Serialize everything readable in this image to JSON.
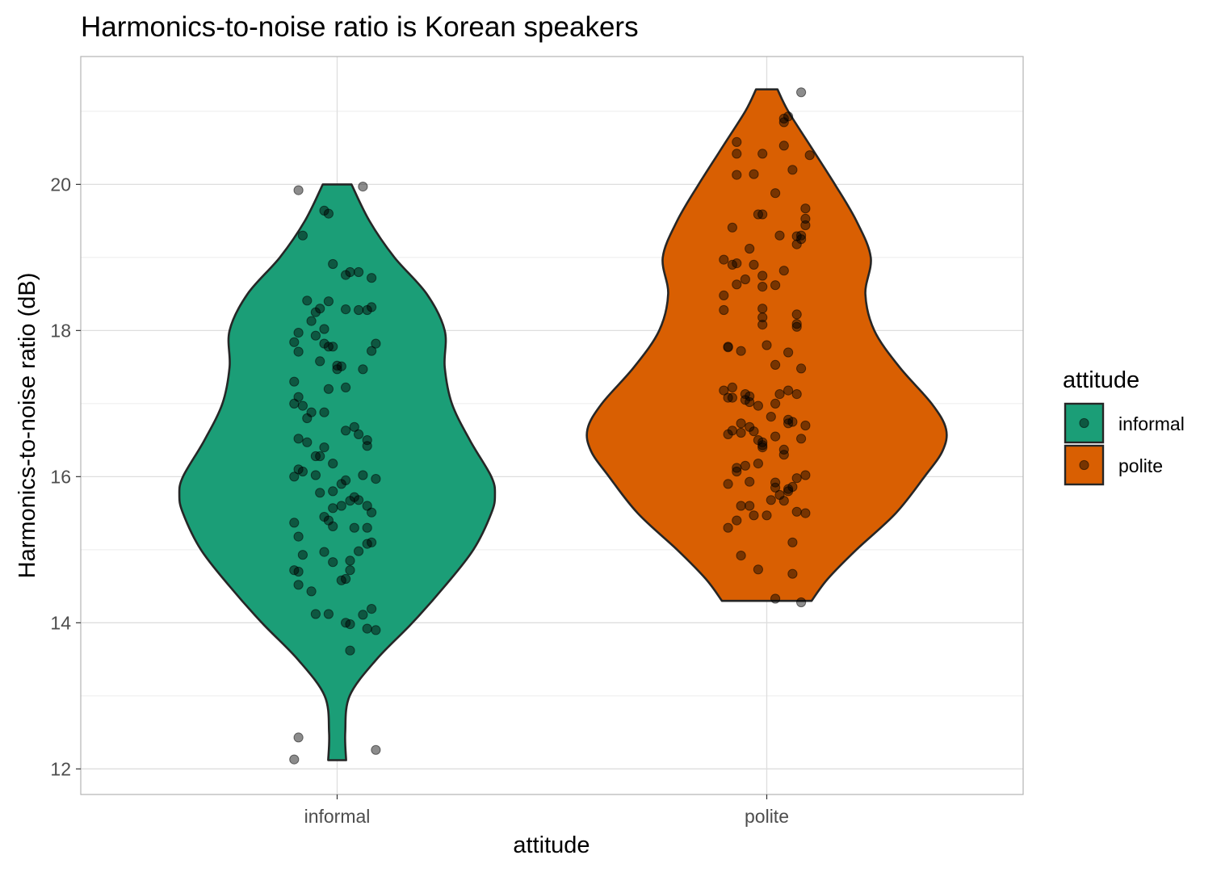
{
  "chart_data": {
    "type": "violin",
    "title": "Harmonics-to-noise ratio is Korean speakers",
    "xlabel": "attitude",
    "ylabel": "Harmonics-to-noise ratio (dB)",
    "ylim": [
      11.65,
      21.75
    ],
    "yticks": [
      12,
      14,
      16,
      18,
      20
    ],
    "grid": true,
    "legend": {
      "title": "attitude",
      "position": "right",
      "entries": [
        "informal",
        "polite"
      ]
    },
    "categories": [
      "informal",
      "polite"
    ],
    "series": [
      {
        "name": "informal",
        "color": "#1b9e77",
        "min": 12.12,
        "max": 20.0,
        "density": [
          [
            12.12,
            0.05
          ],
          [
            12.5,
            0.045
          ],
          [
            13.0,
            0.07
          ],
          [
            13.5,
            0.22
          ],
          [
            14.0,
            0.42
          ],
          [
            14.5,
            0.6
          ],
          [
            15.0,
            0.76
          ],
          [
            15.5,
            0.86
          ],
          [
            15.75,
            0.88
          ],
          [
            16.0,
            0.86
          ],
          [
            16.5,
            0.74
          ],
          [
            17.0,
            0.64
          ],
          [
            17.5,
            0.6
          ],
          [
            18.0,
            0.6
          ],
          [
            18.5,
            0.5
          ],
          [
            19.0,
            0.32
          ],
          [
            19.5,
            0.18
          ],
          [
            20.0,
            0.08
          ]
        ],
        "points": [
          [
            -0.09,
            19.92
          ],
          [
            0.06,
            19.97
          ],
          [
            -0.03,
            19.64
          ],
          [
            -0.02,
            19.6
          ],
          [
            -0.08,
            19.3
          ],
          [
            -0.01,
            18.91
          ],
          [
            0.03,
            18.8
          ],
          [
            0.05,
            18.8
          ],
          [
            0.02,
            18.76
          ],
          [
            0.08,
            18.72
          ],
          [
            -0.07,
            18.41
          ],
          [
            -0.02,
            18.4
          ],
          [
            -0.04,
            18.3
          ],
          [
            0.08,
            18.32
          ],
          [
            0.02,
            18.29
          ],
          [
            0.05,
            18.28
          ],
          [
            0.07,
            18.28
          ],
          [
            -0.05,
            18.25
          ],
          [
            -0.06,
            18.13
          ],
          [
            -0.03,
            18.02
          ],
          [
            -0.09,
            17.97
          ],
          [
            -0.05,
            17.93
          ],
          [
            -0.1,
            17.84
          ],
          [
            -0.03,
            17.82
          ],
          [
            -0.02,
            17.78
          ],
          [
            -0.01,
            17.78
          ],
          [
            0.09,
            17.82
          ],
          [
            -0.09,
            17.71
          ],
          [
            0.08,
            17.72
          ],
          [
            -0.04,
            17.58
          ],
          [
            0.0,
            17.52
          ],
          [
            0.01,
            17.51
          ],
          [
            0.0,
            17.47
          ],
          [
            0.06,
            17.47
          ],
          [
            -0.1,
            17.3
          ],
          [
            0.02,
            17.22
          ],
          [
            -0.02,
            17.2
          ],
          [
            -0.09,
            17.09
          ],
          [
            -0.1,
            17.0
          ],
          [
            -0.08,
            16.97
          ],
          [
            -0.06,
            16.88
          ],
          [
            -0.03,
            16.88
          ],
          [
            -0.07,
            16.8
          ],
          [
            0.04,
            16.68
          ],
          [
            0.02,
            16.63
          ],
          [
            0.05,
            16.58
          ],
          [
            0.07,
            16.5
          ],
          [
            -0.09,
            16.52
          ],
          [
            -0.07,
            16.47
          ],
          [
            0.07,
            16.42
          ],
          [
            -0.03,
            16.4
          ],
          [
            -0.04,
            16.28
          ],
          [
            -0.05,
            16.28
          ],
          [
            -0.01,
            16.18
          ],
          [
            -0.09,
            16.1
          ],
          [
            -0.08,
            16.07
          ],
          [
            -0.1,
            16.0
          ],
          [
            -0.05,
            16.02
          ],
          [
            0.06,
            16.02
          ],
          [
            0.09,
            15.97
          ],
          [
            0.02,
            15.95
          ],
          [
            0.01,
            15.9
          ],
          [
            -0.04,
            15.78
          ],
          [
            -0.01,
            15.8
          ],
          [
            0.04,
            15.72
          ],
          [
            0.05,
            15.68
          ],
          [
            0.03,
            15.67
          ],
          [
            0.07,
            15.6
          ],
          [
            0.01,
            15.6
          ],
          [
            -0.01,
            15.57
          ],
          [
            0.08,
            15.51
          ],
          [
            -0.03,
            15.45
          ],
          [
            -0.02,
            15.4
          ],
          [
            -0.1,
            15.37
          ],
          [
            -0.01,
            15.32
          ],
          [
            0.04,
            15.3
          ],
          [
            0.07,
            15.3
          ],
          [
            -0.09,
            15.18
          ],
          [
            0.07,
            15.08
          ],
          [
            0.08,
            15.1
          ],
          [
            0.05,
            14.98
          ],
          [
            -0.03,
            14.97
          ],
          [
            -0.08,
            14.93
          ],
          [
            0.03,
            14.85
          ],
          [
            -0.01,
            14.83
          ],
          [
            -0.1,
            14.72
          ],
          [
            -0.09,
            14.7
          ],
          [
            0.03,
            14.72
          ],
          [
            0.02,
            14.6
          ],
          [
            0.01,
            14.58
          ],
          [
            -0.09,
            14.52
          ],
          [
            -0.06,
            14.43
          ],
          [
            0.08,
            14.19
          ],
          [
            0.06,
            14.11
          ],
          [
            -0.05,
            14.12
          ],
          [
            -0.02,
            14.12
          ],
          [
            0.02,
            14.0
          ],
          [
            0.03,
            13.98
          ],
          [
            0.07,
            13.92
          ],
          [
            0.09,
            13.9
          ],
          [
            0.03,
            13.62
          ],
          [
            -0.09,
            12.43
          ],
          [
            -0.1,
            12.13
          ],
          [
            0.09,
            12.26
          ]
        ]
      },
      {
        "name": "polite",
        "color": "#d95f02",
        "min": 14.3,
        "max": 21.3,
        "density": [
          [
            14.3,
            0.25
          ],
          [
            14.6,
            0.34
          ],
          [
            15.0,
            0.5
          ],
          [
            15.5,
            0.72
          ],
          [
            16.0,
            0.88
          ],
          [
            16.35,
            0.98
          ],
          [
            16.65,
            1.0
          ],
          [
            17.0,
            0.92
          ],
          [
            17.5,
            0.74
          ],
          [
            18.0,
            0.6
          ],
          [
            18.5,
            0.55
          ],
          [
            19.0,
            0.58
          ],
          [
            19.5,
            0.5
          ],
          [
            20.0,
            0.38
          ],
          [
            20.5,
            0.25
          ],
          [
            21.0,
            0.12
          ],
          [
            21.3,
            0.06
          ]
        ],
        "points": [
          [
            0.08,
            21.26
          ],
          [
            0.05,
            20.93
          ],
          [
            0.04,
            20.9
          ],
          [
            0.04,
            20.85
          ],
          [
            -0.07,
            20.58
          ],
          [
            0.04,
            20.53
          ],
          [
            -0.07,
            20.42
          ],
          [
            -0.01,
            20.42
          ],
          [
            0.1,
            20.4
          ],
          [
            0.06,
            20.2
          ],
          [
            -0.07,
            20.13
          ],
          [
            -0.03,
            20.14
          ],
          [
            0.02,
            19.88
          ],
          [
            0.09,
            19.67
          ],
          [
            -0.02,
            19.59
          ],
          [
            -0.01,
            19.59
          ],
          [
            0.09,
            19.53
          ],
          [
            0.09,
            19.44
          ],
          [
            -0.08,
            19.41
          ],
          [
            0.03,
            19.3
          ],
          [
            0.07,
            19.29
          ],
          [
            0.08,
            19.3
          ],
          [
            0.08,
            19.25
          ],
          [
            0.07,
            19.18
          ],
          [
            -0.04,
            19.12
          ],
          [
            -0.1,
            18.97
          ],
          [
            -0.07,
            18.92
          ],
          [
            -0.08,
            18.9
          ],
          [
            -0.03,
            18.9
          ],
          [
            0.04,
            18.82
          ],
          [
            -0.01,
            18.75
          ],
          [
            -0.05,
            18.7
          ],
          [
            -0.07,
            18.63
          ],
          [
            0.02,
            18.62
          ],
          [
            -0.01,
            18.6
          ],
          [
            -0.1,
            18.48
          ],
          [
            -0.01,
            18.3
          ],
          [
            -0.1,
            18.28
          ],
          [
            0.07,
            18.22
          ],
          [
            -0.01,
            18.18
          ],
          [
            0.07,
            18.09
          ],
          [
            0.07,
            18.05
          ],
          [
            -0.01,
            18.08
          ],
          [
            -0.09,
            17.78
          ],
          [
            -0.09,
            17.77
          ],
          [
            -0.06,
            17.72
          ],
          [
            0.05,
            17.7
          ],
          [
            0.0,
            17.8
          ],
          [
            0.02,
            17.53
          ],
          [
            0.08,
            17.48
          ],
          [
            -0.08,
            17.22
          ],
          [
            -0.1,
            17.18
          ],
          [
            0.05,
            17.18
          ],
          [
            -0.05,
            17.13
          ],
          [
            -0.04,
            17.1
          ],
          [
            -0.09,
            17.08
          ],
          [
            -0.08,
            17.08
          ],
          [
            0.07,
            17.13
          ],
          [
            0.03,
            17.13
          ],
          [
            -0.05,
            17.05
          ],
          [
            -0.04,
            17.02
          ],
          [
            0.02,
            17.0
          ],
          [
            -0.02,
            16.97
          ],
          [
            0.01,
            16.82
          ],
          [
            -0.06,
            16.73
          ],
          [
            0.05,
            16.78
          ],
          [
            0.05,
            16.73
          ],
          [
            0.06,
            16.75
          ],
          [
            0.09,
            16.7
          ],
          [
            -0.04,
            16.68
          ],
          [
            -0.08,
            16.63
          ],
          [
            -0.06,
            16.6
          ],
          [
            -0.03,
            16.62
          ],
          [
            -0.09,
            16.58
          ],
          [
            0.02,
            16.55
          ],
          [
            -0.02,
            16.5
          ],
          [
            -0.01,
            16.47
          ],
          [
            0.08,
            16.52
          ],
          [
            -0.01,
            16.43
          ],
          [
            -0.01,
            16.4
          ],
          [
            0.04,
            16.3
          ],
          [
            -0.02,
            16.18
          ],
          [
            0.04,
            16.37
          ],
          [
            -0.05,
            16.15
          ],
          [
            -0.07,
            16.12
          ],
          [
            -0.07,
            16.07
          ],
          [
            0.07,
            15.98
          ],
          [
            0.09,
            16.02
          ],
          [
            -0.09,
            15.9
          ],
          [
            -0.04,
            15.93
          ],
          [
            0.02,
            15.92
          ],
          [
            0.02,
            15.85
          ],
          [
            0.06,
            15.86
          ],
          [
            0.05,
            15.8
          ],
          [
            0.05,
            15.83
          ],
          [
            0.03,
            15.75
          ],
          [
            0.01,
            15.68
          ],
          [
            0.04,
            15.67
          ],
          [
            -0.06,
            15.6
          ],
          [
            -0.04,
            15.6
          ],
          [
            0.07,
            15.52
          ],
          [
            0.09,
            15.5
          ],
          [
            -0.03,
            15.47
          ],
          [
            0.0,
            15.47
          ],
          [
            -0.07,
            15.4
          ],
          [
            -0.09,
            15.3
          ],
          [
            0.06,
            15.1
          ],
          [
            -0.06,
            14.92
          ],
          [
            -0.02,
            14.73
          ],
          [
            0.06,
            14.67
          ],
          [
            0.02,
            14.33
          ],
          [
            0.08,
            14.28
          ]
        ]
      }
    ]
  }
}
